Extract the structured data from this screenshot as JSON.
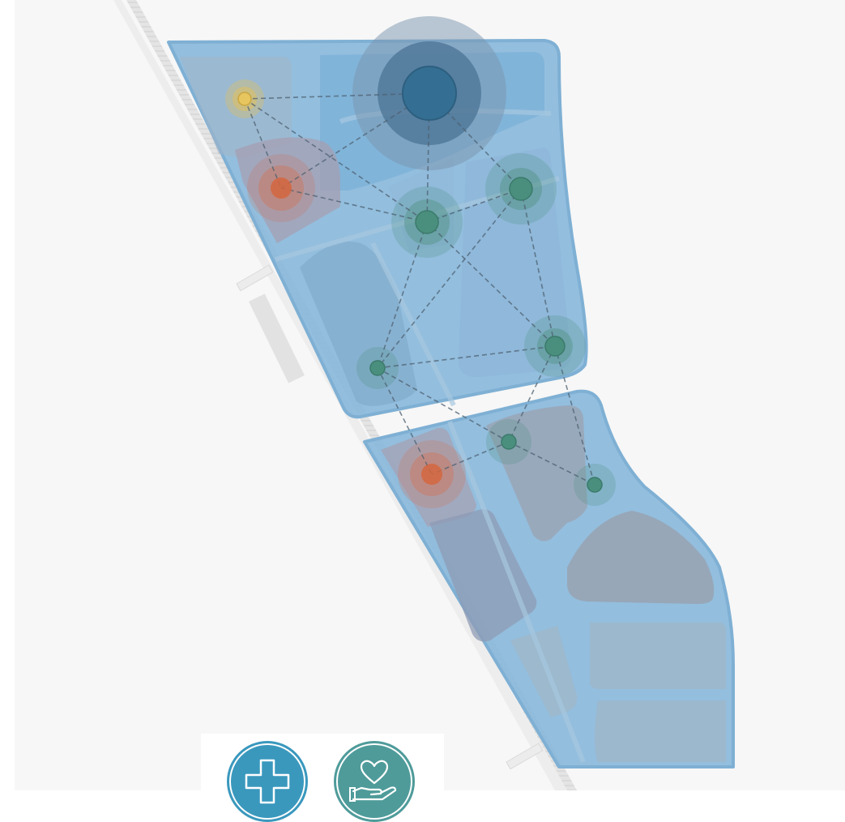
{
  "map": {
    "colors": {
      "background": "#f7f7f7",
      "district_fill": "#8ab8db",
      "district_stroke": "#7fb0d4",
      "block_fill": "#96acbf",
      "block_dark": "#9aa6b6",
      "connection_line": "#4d6070",
      "hub_dark": "#3a6f8f",
      "halo_blue": "#5f7fa0",
      "node_green": "#4a8f7e",
      "node_orange": "#d96a45",
      "node_yellow": "#e3c15a",
      "rail": "#c9c9c9"
    },
    "nodes": [
      {
        "id": "hub-main",
        "kind": "hub"
      },
      {
        "id": "clinic-north",
        "kind": "yellow"
      },
      {
        "id": "hospital-west",
        "kind": "orange"
      },
      {
        "id": "care-center-1",
        "kind": "green"
      },
      {
        "id": "care-center-2",
        "kind": "green"
      },
      {
        "id": "care-center-3",
        "kind": "green"
      },
      {
        "id": "care-center-4",
        "kind": "green"
      },
      {
        "id": "care-center-5",
        "kind": "green"
      },
      {
        "id": "care-center-6",
        "kind": "green"
      },
      {
        "id": "hospital-south",
        "kind": "orange"
      }
    ]
  },
  "legend": {
    "buttons": [
      {
        "name": "medical-cross-icon",
        "color": "#3a98bd"
      },
      {
        "name": "care-heart-hand-icon",
        "color": "#4e9b9a"
      }
    ]
  }
}
